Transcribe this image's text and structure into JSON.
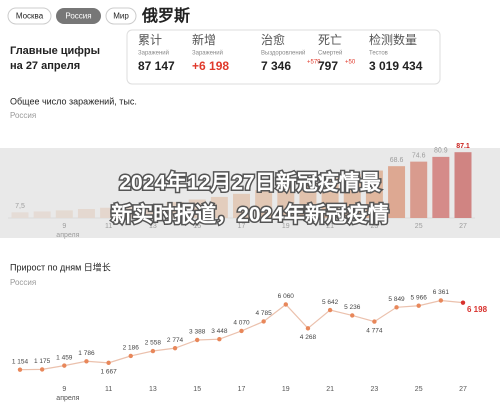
{
  "tabs": [
    "Москва",
    "Россия",
    "Мир"
  ],
  "title": "俄罗斯",
  "summary": {
    "heading": "Главные цифры",
    "date": "на 27 апреля"
  },
  "stats": [
    {
      "label": "累计",
      "sublabel": "Заражений",
      "value": "87 147"
    },
    {
      "label": "新增",
      "sublabel": "Заражений",
      "value": "+6 198"
    },
    {
      "label": "治愈",
      "sublabel": "Выздоровлений",
      "value": "7 346",
      "change": "+579"
    },
    {
      "label": "死亡",
      "sublabel": "Смертей",
      "value": "797",
      "change": "+50"
    },
    {
      "label": "检测数量",
      "sublabel": "Тестов",
      "value": "3 019 434"
    }
  ],
  "banner": [
    "2024年12月27日新冠疫情最",
    "新实时报道，2024年新冠疫情"
  ],
  "chart_data": [
    {
      "type": "bar",
      "title": "Общее число заражений, тыс.",
      "subtitle": "Россия",
      "month": "апреля",
      "categories": [
        null,
        null,
        "9",
        null,
        "11",
        null,
        "13",
        null,
        "15",
        null,
        "17",
        null,
        "19",
        null,
        "21",
        null,
        "23",
        null,
        "25",
        null,
        "27"
      ],
      "values": [
        7.5,
        8.7,
        10.1,
        11.9,
        13.6,
        15.8,
        18.3,
        21.1,
        24.5,
        27.9,
        32.0,
        36.8,
        42.9,
        47.1,
        52.8,
        57.9,
        62.8,
        68.6,
        74.6,
        80.9,
        87.1
      ],
      "value_labels": [
        "7,5",
        null,
        null,
        null,
        null,
        null,
        null,
        null,
        null,
        null,
        null,
        null,
        null,
        null,
        null,
        null,
        null,
        "68.6",
        "74.6",
        "80.9",
        "87.1"
      ],
      "colors": [
        "#f5e3d6",
        "#f5e0d2",
        "#f4ddcd",
        "#f4dac8",
        "#f3d6c2",
        "#f3d2bc",
        "#f2ceb5",
        "#f2caae",
        "#f1c5a6",
        "#f1c09e",
        "#f0bb96",
        "#efb58d",
        "#efaf84",
        "#eea97a",
        "#eda270",
        "#ec9b66",
        "#ea915a",
        "#e4703f",
        "#dc5236",
        "#d2302a",
        "#c8201c"
      ],
      "ylim": [
        0,
        90
      ]
    },
    {
      "type": "line",
      "title": "Прирост по дням 日增长",
      "subtitle": "Россия",
      "month": "апреля",
      "categories": [
        null,
        null,
        "9",
        null,
        "11",
        null,
        "13",
        null,
        "15",
        null,
        "17",
        null,
        "19",
        null,
        "21",
        null,
        "23",
        null,
        "25",
        null,
        "27"
      ],
      "values": [
        1154,
        1175,
        1459,
        1786,
        1667,
        2186,
        2558,
        2774,
        3388,
        3448,
        4070,
        4785,
        6060,
        4268,
        5642,
        5236,
        4774,
        5849,
        5966,
        6361,
        6198
      ],
      "value_labels": [
        "1 154",
        "1 175",
        "1 459",
        "1 786",
        "1 667",
        "2 186",
        "2 558",
        "2 774",
        "3 388",
        "3 448",
        "4 070",
        "4 785",
        "6 060",
        "4 268",
        "5 642",
        "5 236",
        "4 774",
        "5 849",
        "5 966",
        "6 361",
        "6 198"
      ],
      "color": "#e8875a",
      "line_color": "#ebc1ad",
      "highlight_color": "#d8302c",
      "ylim": [
        0,
        7000
      ]
    }
  ]
}
